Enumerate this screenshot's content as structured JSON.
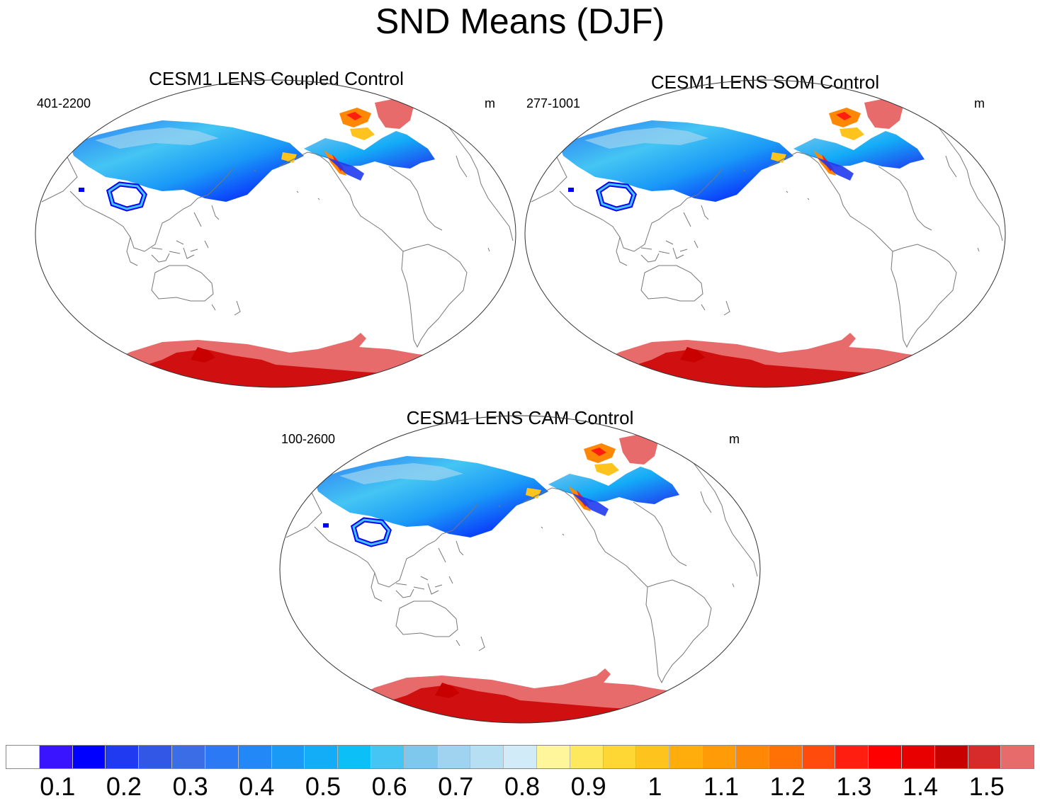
{
  "figure": {
    "title": "SND Means (DJF)"
  },
  "panels": [
    {
      "title": "CESM1 LENS Coupled Control",
      "years": "401-2200",
      "units": "m"
    },
    {
      "title": "CESM1 LENS SOM Control",
      "years": "277-1001",
      "units": "m"
    },
    {
      "title": "CESM1 LENS CAM Control",
      "years": "100-2600",
      "units": "m"
    }
  ],
  "colorbar": {
    "colors": [
      "#ffffff",
      "#3a14ff",
      "#0000ff",
      "#1f3af0",
      "#3257e6",
      "#3b6ee6",
      "#2b79f4",
      "#2288f8",
      "#1a9af7",
      "#13acf7",
      "#0cc0f7",
      "#44c5f3",
      "#7ec7ed",
      "#9fd3f0",
      "#b7dff3",
      "#d2ebf8",
      "#fff59b",
      "#fde85e",
      "#ffd735",
      "#ffc31e",
      "#ffad0c",
      "#ff9b07",
      "#ff8706",
      "#ff7005",
      "#ff4c0c",
      "#ff1e0f",
      "#ff0000",
      "#e80000",
      "#c80000",
      "#d72a2a",
      "#e86b6b"
    ],
    "tick_labels": [
      "0.1",
      "0.2",
      "0.3",
      "0.4",
      "0.5",
      "0.6",
      "0.7",
      "0.8",
      "0.9",
      "1",
      "1.1",
      "1.2",
      "1.3",
      "1.4",
      "1.5"
    ]
  },
  "chart_data": {
    "type": "map",
    "variable": "SND",
    "season": "DJF",
    "units": "m",
    "contour_levels": [
      0.05,
      0.1,
      0.15,
      0.2,
      0.25,
      0.3,
      0.35,
      0.4,
      0.45,
      0.5,
      0.55,
      0.6,
      0.65,
      0.7,
      0.75,
      0.8,
      0.85,
      0.9,
      0.95,
      1.0,
      1.05,
      1.1,
      1.15,
      1.2,
      1.25,
      1.3,
      1.35,
      1.4,
      1.45,
      1.5
    ]
  }
}
